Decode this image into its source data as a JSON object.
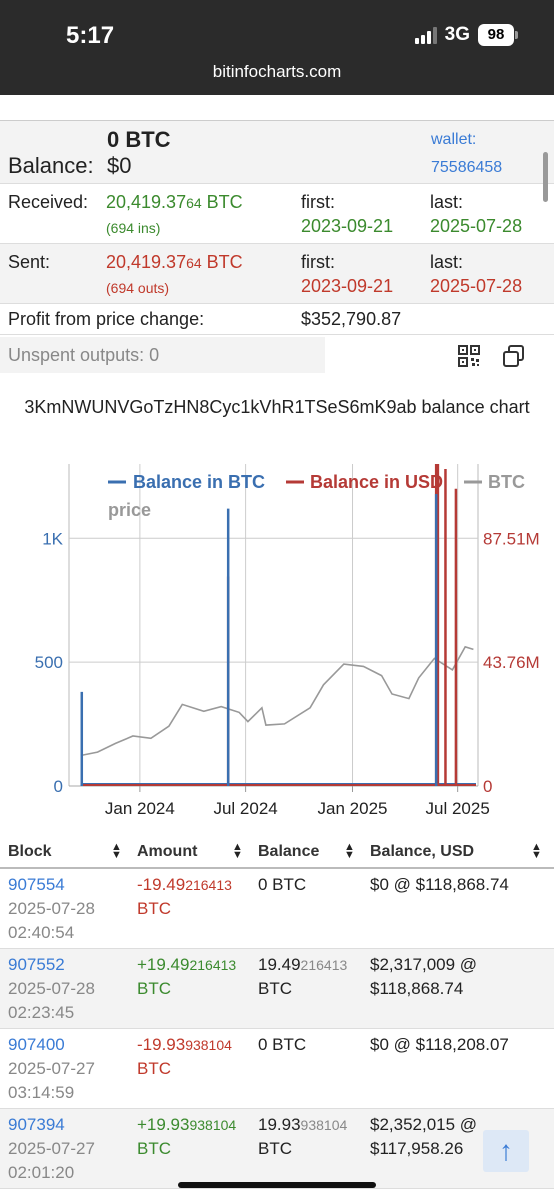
{
  "status": {
    "time": "5:17",
    "network": "3G",
    "battery": "98"
  },
  "browser": {
    "url": "bitinfocharts.com"
  },
  "summary": {
    "btc_amount": "0 BTC",
    "balance_label": "Balance:",
    "balance_usd": "$0",
    "wallet_label": "wallet:",
    "wallet_id": "75586458",
    "received": {
      "label": "Received:",
      "main": "20,419.37",
      "frac": "64",
      "unit": " BTC",
      "count": "(694 ins)",
      "first_label": "first:",
      "first": "2023-09-21",
      "last_label": "last:",
      "last": "2025-07-28"
    },
    "sent": {
      "label": "Sent:",
      "main": "20,419.37",
      "frac": "64",
      "unit": " BTC",
      "count": "(694 outs)",
      "first_label": "first:",
      "first": "2023-09-21",
      "last_label": "last:",
      "last": "2025-07-28"
    },
    "profit_label": "Profit from price change:",
    "profit_value": "$352,790.87",
    "unspent": "Unspent outputs: 0"
  },
  "chart_title": "3KmNWUNVGoTzHN8Cyc1kVhR1TSeS6mK9ab balance chart",
  "chart_data": {
    "type": "line",
    "legend": [
      "Balance in BTC",
      "Balance in USD",
      "BTC price"
    ],
    "left_ticks": [
      "0",
      "500",
      "1K"
    ],
    "right_ticks": [
      "0",
      "43.76M",
      "87.51M"
    ],
    "x_ticks": [
      "Jan 2024",
      "Jul 2024",
      "Jan 2025",
      "Jul 2025"
    ],
    "series": [
      {
        "name": "Balance in BTC",
        "color": "#3a6fb0",
        "spikes": [
          {
            "x": "2023-09-23",
            "y": 380
          },
          {
            "x": "2024-06-01",
            "y": 1120
          },
          {
            "x": "2025-05-25",
            "y": 1270
          }
        ]
      },
      {
        "name": "Balance in USD",
        "color": "#b53a36",
        "spikes": [
          {
            "x": "2024-06-01",
            "y": 74000000
          },
          {
            "x": "2025-05-25",
            "y": 129000000
          },
          {
            "x": "2025-05-28",
            "y": 135000000
          },
          {
            "x": "2025-06-10",
            "y": 112000000
          },
          {
            "x": "2025-06-28",
            "y": 105000000
          }
        ]
      },
      {
        "name": "BTC price",
        "color": "#999999",
        "points": [
          {
            "x": "2023-09-21",
            "y": 26500
          },
          {
            "x": "2023-10-20",
            "y": 29500
          },
          {
            "x": "2023-11-20",
            "y": 37000
          },
          {
            "x": "2023-12-20",
            "y": 43500
          },
          {
            "x": "2024-01-20",
            "y": 41500
          },
          {
            "x": "2024-02-20",
            "y": 52000
          },
          {
            "x": "2024-03-14",
            "y": 71000
          },
          {
            "x": "2024-04-20",
            "y": 65000
          },
          {
            "x": "2024-05-20",
            "y": 69000
          },
          {
            "x": "2024-06-20",
            "y": 64000
          },
          {
            "x": "2024-07-05",
            "y": 56000
          },
          {
            "x": "2024-07-29",
            "y": 68000
          },
          {
            "x": "2024-08-05",
            "y": 53000
          },
          {
            "x": "2024-09-06",
            "y": 54000
          },
          {
            "x": "2024-10-20",
            "y": 68000
          },
          {
            "x": "2024-11-12",
            "y": 88000
          },
          {
            "x": "2024-12-17",
            "y": 106000
          },
          {
            "x": "2025-01-20",
            "y": 104000
          },
          {
            "x": "2025-02-20",
            "y": 96000
          },
          {
            "x": "2025-03-10",
            "y": 80000
          },
          {
            "x": "2025-04-08",
            "y": 76000
          },
          {
            "x": "2025-04-25",
            "y": 94000
          },
          {
            "x": "2025-05-22",
            "y": 111000
          },
          {
            "x": "2025-06-22",
            "y": 101000
          },
          {
            "x": "2025-07-14",
            "y": 121000
          },
          {
            "x": "2025-07-28",
            "y": 118800
          }
        ]
      }
    ],
    "xlim": [
      "2023-09-01",
      "2025-08-05"
    ],
    "ylim_left": [
      0,
      1300
    ],
    "ylim_right": [
      0,
      113763000
    ],
    "ylim_price": [
      0,
      280000
    ]
  },
  "table": {
    "headers": [
      "Block",
      "Amount",
      "Balance",
      "Balance, USD"
    ],
    "rows": [
      {
        "block": "907554",
        "date": "2025-07-28",
        "time": "02:40:54",
        "amt_main": "-19.49",
        "amt_frac": "216413",
        "amt_unit": "BTC",
        "bal_main": "0 BTC",
        "bal_frac": "",
        "bal_unit": "",
        "usd1": "$0 @ $118,868.74",
        "usd2": ""
      },
      {
        "block": "907552",
        "date": "2025-07-28",
        "time": "02:23:45",
        "amt_main": "+19.49",
        "amt_frac": "216413",
        "amt_unit": "BTC",
        "bal_main": "19.49",
        "bal_frac": "216413",
        "bal_unit": "BTC",
        "usd1": "$2,317,009 @",
        "usd2": "$118,868.74"
      },
      {
        "block": "907400",
        "date": "2025-07-27",
        "time": "03:14:59",
        "amt_main": "-19.93",
        "amt_frac": "938104",
        "amt_unit": "BTC",
        "bal_main": "0 BTC",
        "bal_frac": "",
        "bal_unit": "",
        "usd1": "$0 @ $118,208.07",
        "usd2": ""
      },
      {
        "block": "907394",
        "date": "2025-07-27",
        "time": "02:01:20",
        "amt_main": "+19.93",
        "amt_frac": "938104",
        "amt_unit": "BTC",
        "bal_main": "19.93",
        "bal_frac": "938104",
        "bal_unit": "BTC",
        "usd1": "$2,352,015 @",
        "usd2": "$117,958.26"
      }
    ]
  },
  "scroll_top_icon": "↑"
}
